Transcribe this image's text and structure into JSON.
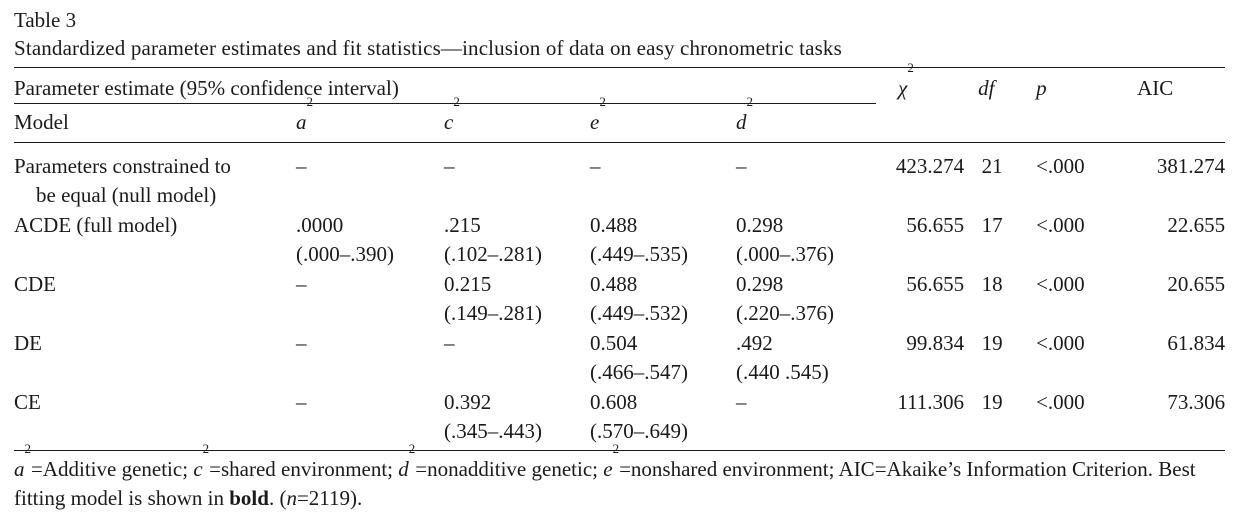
{
  "table_label": "Table 3",
  "caption": "Standardized parameter estimates and fit statistics—inclusion of data on easy chronometric tasks",
  "header": {
    "param_group": "Parameter estimate (95% confidence interval)",
    "model": "Model",
    "a": "a",
    "c": "c",
    "e": "e",
    "d": "d",
    "sup2": "2",
    "chi": "χ",
    "df": "df",
    "p": "p",
    "aic": "AIC"
  },
  "rows": [
    {
      "model_line1": "Parameters constrained to",
      "model_line2": "be equal (null model)",
      "a": "–",
      "a_ci": "",
      "c": "–",
      "c_ci": "",
      "e": "–",
      "e_ci": "",
      "d": "–",
      "d_ci": "",
      "chi2": "423.274",
      "df": "21",
      "p": "<.000",
      "aic": "381.274",
      "bold": false
    },
    {
      "model_line1": "ACDE (full model)",
      "model_line2": "",
      "a": ".0000",
      "a_ci": "(.000–.390)",
      "c": ".215",
      "c_ci": "(.102–.281)",
      "e": "0.488",
      "e_ci": "(.449–.535)",
      "d": "0.298",
      "d_ci": "(.000–.376)",
      "chi2": "56.655",
      "df": "17",
      "p": "<.000",
      "aic": "22.655",
      "bold": false
    },
    {
      "model_line1": "CDE",
      "model_line2": "",
      "a": "–",
      "a_ci": "",
      "c": "0.215",
      "c_ci": "(.149–.281)",
      "e": "0.488",
      "e_ci": "(.449–.532)",
      "d": "0.298",
      "d_ci": "(.220–.376)",
      "chi2": "56.655",
      "df": "18",
      "p": "<.000",
      "aic": "20.655",
      "bold": true
    },
    {
      "model_line1": "DE",
      "model_line2": "",
      "a": "–",
      "a_ci": "",
      "c": "–",
      "c_ci": "",
      "e": "0.504",
      "e_ci": "(.466–.547)",
      "d": ".492",
      "d_ci": "(.440 .545)",
      "chi2": "99.834",
      "df": "19",
      "p": "<.000",
      "aic": "61.834",
      "bold": false
    },
    {
      "model_line1": "CE",
      "model_line2": "",
      "a": "–",
      "a_ci": "",
      "c": "0.392",
      "c_ci": "(.345–.443)",
      "e": "0.608",
      "e_ci": "(.570–.649)",
      "d": "–",
      "d_ci": "",
      "chi2": "111.306",
      "df": "19",
      "p": "<.000",
      "aic": "73.306",
      "bold": false
    }
  ],
  "footnote": {
    "a_def": "=Additive genetic; ",
    "c_def": "=shared environment; ",
    "d_def": "=nonadditive genetic; ",
    "e_def": "=nonshared environment; AIC=Akaike’s Information Criterion. Best fitting model is shown in ",
    "bold_word": "bold",
    "tail_open": ". (",
    "n_symbol": "n",
    "n_value": "=2119)."
  }
}
